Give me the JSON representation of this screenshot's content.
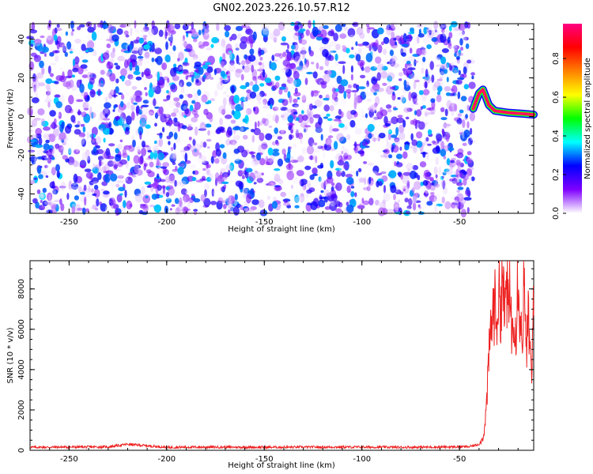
{
  "page_title": "GN02.2023.226.10.57.R12",
  "chart_data": [
    {
      "type": "heatmap",
      "title": "GN02.2023.226.10.57.R12",
      "xlabel": "Height of straight line (km)",
      "ylabel": "Frequency (Hz)",
      "xlim": [
        -270,
        -12
      ],
      "ylim": [
        -50,
        48
      ],
      "x_ticks": [
        -250,
        -200,
        -150,
        -100,
        -50
      ],
      "y_ticks": [
        -40,
        -20,
        0,
        20,
        40
      ],
      "noise_x_range": [
        -270,
        -43
      ],
      "noise_amplitude_range": [
        0.0,
        0.35
      ],
      "signal_ridge": {
        "points": [
          [
            -43,
            4
          ],
          [
            -40,
            12
          ],
          [
            -38,
            14
          ],
          [
            -35,
            6
          ],
          [
            -32,
            3
          ],
          [
            -25,
            2
          ],
          [
            -18,
            1.5
          ],
          [
            -12,
            1
          ]
        ],
        "peak_amplitude": 1.0
      },
      "colorbar": {
        "label": "Normalized spectral amplitude",
        "ticks": [
          0.0,
          0.2,
          0.4,
          0.6,
          0.8
        ],
        "range": [
          0,
          0.98
        ],
        "colors": [
          "#ffffff",
          "#8000ff",
          "#0000ff",
          "#00ffff",
          "#00ff00",
          "#ffff00",
          "#ff8000",
          "#ff0000",
          "#ff0080"
        ]
      }
    },
    {
      "type": "line",
      "xlabel": "Height of straight line (km)",
      "ylabel": "SNR (10 * v/v)",
      "xlim": [
        -270,
        -12
      ],
      "ylim": [
        0,
        9400
      ],
      "x_ticks": [
        -250,
        -200,
        -150,
        -100,
        -50
      ],
      "y_ticks": [
        0,
        2000,
        4000,
        6000,
        8000
      ],
      "color": "#ee2020",
      "series": [
        {
          "x": [
            -270,
            -250,
            -230,
            -220,
            -200,
            -180,
            -150,
            -120,
            -100,
            -80,
            -60,
            -45,
            -40,
            -38,
            -37,
            -36,
            -35,
            -34,
            -33,
            -32,
            -31,
            -30,
            -29,
            -28,
            -27,
            -26,
            -25,
            -24,
            -23,
            -22,
            -21,
            -20,
            -19,
            -18,
            -17,
            -16,
            -15,
            -14,
            -13,
            -12
          ],
          "y": [
            150,
            160,
            170,
            300,
            150,
            160,
            150,
            160,
            160,
            150,
            160,
            180,
            300,
            600,
            1200,
            2500,
            4500,
            6000,
            6800,
            7200,
            6500,
            7800,
            7000,
            9300,
            6200,
            8700,
            6500,
            7900,
            5600,
            7400,
            6000,
            9200,
            6800,
            5200,
            8400,
            4800,
            6500,
            5400,
            3000,
            9000
          ]
        }
      ]
    }
  ]
}
